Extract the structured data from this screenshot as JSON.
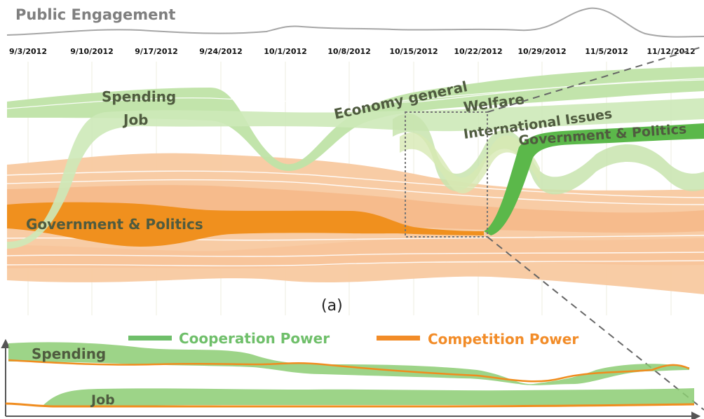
{
  "title": "Public Engagement",
  "dates": [
    "9/3/2012",
    "9/10/2012",
    "9/17/2012",
    "9/24/2012",
    "10/1/2012",
    "10/8/2012",
    "10/15/2012",
    "10/22/2012",
    "10/29/2012",
    "11/5/2012",
    "11/12/2012"
  ],
  "topics": {
    "spending": "Spending",
    "job": "Job",
    "economy": "Economy general",
    "welfare": "Welfare",
    "international": "International Issues",
    "gov_upper": "Government & Politics",
    "gov_lower": "Government & Politics"
  },
  "caption": "(a)",
  "legend": {
    "cooperation": "Cooperation Power",
    "competition": "Competition Power"
  },
  "detail": {
    "spending": "Spending",
    "job": "Job"
  },
  "colors": {
    "green_light": "#bfe3a6",
    "green_dark": "#5bb84a",
    "orange_light": "#f8c9a0",
    "orange_dark": "#f0901e",
    "gray": "#a6a6a6"
  }
}
